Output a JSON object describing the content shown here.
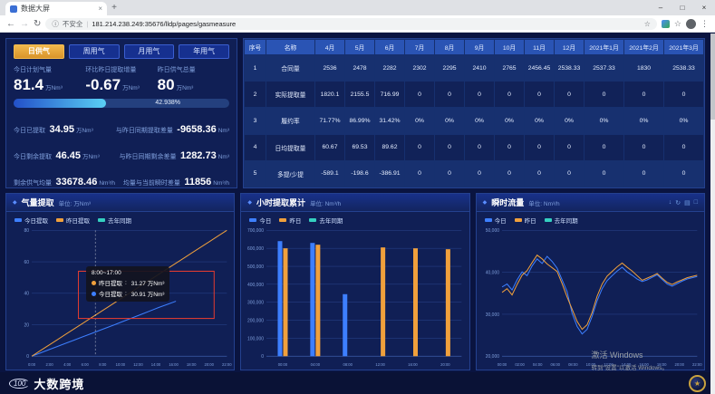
{
  "browser": {
    "tab_title": "数据大屏",
    "security_text": "不安全",
    "url": "181.214.238.249:35676/lldp/pages/gasmeasure",
    "icons": {
      "back": "←",
      "forward": "→",
      "refresh": "↻",
      "info": "ⓘ",
      "star": "☆",
      "menu": "⋮",
      "plus": "+",
      "minimize": "–",
      "maximize": "□",
      "close": "×",
      "tab_close": "×"
    }
  },
  "icons": {
    "panel_marker": "◆"
  },
  "left_panel": {
    "tabs": [
      {
        "label": "日供气",
        "active": true
      },
      {
        "label": "周用气",
        "active": false
      },
      {
        "label": "月用气",
        "active": false
      },
      {
        "label": "年用气",
        "active": false
      }
    ],
    "stats": [
      {
        "label": "今日计划气量",
        "value": "81.4",
        "unit": "万Nm³"
      },
      {
        "label": "环比昨日提取增量",
        "value": "-0.67",
        "unit": "万Nm³"
      },
      {
        "label": "昨日供气总量",
        "value": "80",
        "unit": "万Nm³"
      }
    ],
    "progress": {
      "percent": 42.938,
      "label": "42.938%"
    },
    "rows": [
      {
        "left": {
          "label": "今日已提取",
          "value": "34.95",
          "unit": "万Nm³"
        },
        "right": {
          "label": "与昨日同期提取差量",
          "value": "-9658.36",
          "unit": "Nm³"
        }
      },
      {
        "left": {
          "label": "今日剩余提取",
          "value": "46.45",
          "unit": "万Nm³"
        },
        "right": {
          "label": "与昨日同期剩余差量",
          "value": "1282.73",
          "unit": "Nm³"
        }
      },
      {
        "left": {
          "label": "剩余供气均量",
          "value": "33678.46",
          "unit": "Nm³/h"
        },
        "right": {
          "label": "均量与当前瞬时差量",
          "value": "11856",
          "unit": "Nm³/h"
        }
      }
    ]
  },
  "table": {
    "headers": [
      "序号",
      "名称",
      "4月",
      "5月",
      "6月",
      "7月",
      "8月",
      "9月",
      "10月",
      "11月",
      "12月",
      "2021年1月",
      "2021年2月",
      "2021年3月"
    ],
    "rows": [
      {
        "no": "1",
        "name": "合同量",
        "values": [
          "2536",
          "2478",
          "2282",
          "2302",
          "2295",
          "2410",
          "2765",
          "2456.45",
          "2538.33",
          "2537.33",
          "1830",
          "2538.33"
        ]
      },
      {
        "no": "2",
        "name": "实际提取量",
        "values": [
          "1820.1",
          "2155.5",
          "716.99",
          "0",
          "0",
          "0",
          "0",
          "0",
          "0",
          "0",
          "0",
          "0"
        ]
      },
      {
        "no": "3",
        "name": "履约率",
        "values": [
          "71.77%",
          "86.99%",
          "31.42%",
          "0%",
          "0%",
          "0%",
          "0%",
          "0%",
          "0%",
          "0%",
          "0%",
          "0%"
        ]
      },
      {
        "no": "4",
        "name": "日均提取量",
        "values": [
          "60.67",
          "69.53",
          "89.62",
          "0",
          "0",
          "0",
          "0",
          "0",
          "0",
          "0",
          "0",
          "0"
        ]
      },
      {
        "no": "5",
        "name": "多提/少提",
        "values": [
          "-589.1",
          "-198.6",
          "-386.91",
          "0",
          "0",
          "0",
          "0",
          "0",
          "0",
          "0",
          "0",
          "0"
        ]
      }
    ]
  },
  "chart_data": [
    {
      "type": "line",
      "title": "气量提取",
      "unit_label": "单位: 万Nm³",
      "x_count": 24,
      "x_tick_labels": [
        "0:00",
        "2:00",
        "4:00",
        "6:00",
        "8:00",
        "10:00",
        "12:00",
        "14:00",
        "16:00",
        "18:00",
        "20:00",
        "22:00"
      ],
      "ylim": [
        0,
        80
      ],
      "y_ticks": [
        0,
        20,
        40,
        60,
        80
      ],
      "series": [
        {
          "name": "今日提取",
          "color": "#3d7fff",
          "values": [
            0,
            2.05,
            4.1,
            6.15,
            8.2,
            10.25,
            12.3,
            14.35,
            16.4,
            18.45,
            20.5,
            22.6,
            24.7,
            26.8,
            28.9,
            31,
            33,
            34.95
          ]
        },
        {
          "name": "昨日提取",
          "color": "#f0a03c",
          "values": [
            0,
            3.48,
            6.96,
            10.43,
            13.91,
            17.39,
            20.87,
            24.35,
            27.83,
            31.3,
            34.78,
            38.26,
            41.74,
            45.22,
            48.7,
            52.17,
            55.65,
            59.13,
            62.61,
            66.09,
            69.57,
            73.04,
            76.52,
            80
          ]
        },
        {
          "name": "去年同期",
          "color": "#35d0c0",
          "values": []
        }
      ],
      "crosshair_hour": 7.5,
      "annotation_box": {
        "x0": 5.5,
        "x1": 21.5,
        "y0": 24,
        "y1": 54
      },
      "tooltip": {
        "title": "8:00~17:00",
        "rows": [
          {
            "label": "昨日提取",
            "value": "31.27 万Nm³",
            "color": "#f0a03c"
          },
          {
            "label": "今日提取",
            "value": "30.91 万Nm³",
            "color": "#3d7fff"
          }
        ]
      }
    },
    {
      "type": "bar",
      "title": "小时提取累计",
      "unit_label": "单位: Nm³/h",
      "categories": [
        "00:00",
        "04:00",
        "08:00",
        "12:00",
        "16:00",
        "20:00"
      ],
      "ylim": [
        0,
        700000
      ],
      "y_ticks": [
        0,
        100000,
        200000,
        300000,
        400000,
        500000,
        600000,
        700000
      ],
      "series": [
        {
          "name": "今日",
          "color": "#3d7fff",
          "values": [
            640000,
            630000,
            345000,
            0,
            0,
            0
          ]
        },
        {
          "name": "昨日",
          "color": "#f0a03c",
          "values": [
            600000,
            620000,
            0,
            605000,
            600000,
            595000
          ]
        },
        {
          "name": "去年同期",
          "color": "#35d0c0",
          "values": [
            0,
            0,
            0,
            0,
            0,
            0
          ]
        }
      ]
    },
    {
      "type": "line",
      "title": "瞬时流量",
      "unit_label": "单位: Nm³/h",
      "x_count": 40,
      "x_tick_labels": [
        "00:00",
        "02:00",
        "04:00",
        "06:00",
        "08:00",
        "10:00",
        "12:00",
        "14:00",
        "16:00",
        "18:00",
        "20:00",
        "22:00"
      ],
      "ylim": [
        20000,
        50000
      ],
      "y_ticks": [
        20000,
        30000,
        40000,
        50000
      ],
      "series": [
        {
          "name": "今日",
          "color": "#3d7fff",
          "values": [
            36500,
            37200,
            35800,
            38200,
            40100,
            39200,
            41500,
            43200,
            42100,
            43800,
            42600,
            41000,
            38200,
            35400,
            30200,
            27100,
            25300,
            26400,
            29500,
            33200,
            36100,
            38000,
            39200,
            40300,
            41200,
            40100,
            39300,
            38400,
            37800,
            38200,
            38800,
            39400,
            38300,
            37200,
            36700,
            37300,
            37900,
            38400,
            38700,
            39000
          ]
        },
        {
          "name": "昨日",
          "color": "#f0a03c",
          "values": [
            35200,
            36100,
            34600,
            37100,
            39300,
            40400,
            42300,
            44100,
            43200,
            42000,
            41100,
            40200,
            37300,
            34100,
            31200,
            28300,
            26400,
            27500,
            30400,
            34300,
            37200,
            39100,
            40200,
            41300,
            42200,
            41200,
            40300,
            39200,
            38100,
            38600,
            39100,
            39700,
            38600,
            37600,
            37100,
            37700,
            38200,
            38700,
            39000,
            39300
          ]
        },
        {
          "name": "去年同期",
          "color": "#35d0c0",
          "values": []
        }
      ],
      "toolbox": [
        {
          "name": "download",
          "glyph": "↓"
        },
        {
          "name": "refresh",
          "glyph": "↻"
        },
        {
          "name": "data-view",
          "glyph": "▤"
        },
        {
          "name": "fullscreen",
          "glyph": "□"
        }
      ]
    }
  ],
  "footer": {
    "brand": "大数跨境",
    "logo_text": "100"
  },
  "watermark": {
    "line1": "激活 Windows",
    "line2": "转到“设置”以激活 Windows。"
  }
}
